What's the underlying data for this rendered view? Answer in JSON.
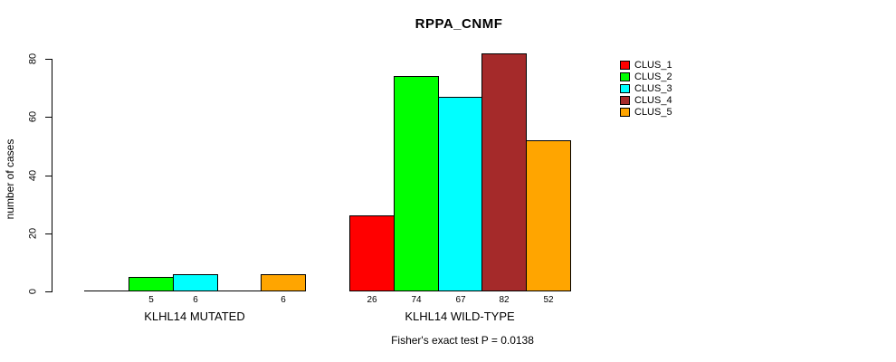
{
  "title": "RPPA_CNMF",
  "y_axis": {
    "label": "number of cases",
    "tick_labels": [
      "0",
      "20",
      "40",
      "60",
      "80"
    ]
  },
  "x_groups": [
    "KLHL14 MUTATED",
    "KLHL14 WILD-TYPE"
  ],
  "footnote": "Fisher's exact test P = 0.0138",
  "legend": {
    "items": [
      {
        "label": "CLUS_1",
        "color": "#FF0000"
      },
      {
        "label": "CLUS_2",
        "color": "#00FF00"
      },
      {
        "label": "CLUS_3",
        "color": "#00FFFF"
      },
      {
        "label": "CLUS_4",
        "color": "#A52A2A"
      },
      {
        "label": "CLUS_5",
        "color": "#FFA500"
      }
    ]
  },
  "chart_data": {
    "type": "bar",
    "title": "RPPA_CNMF",
    "xlabel": "",
    "ylabel": "number of cases",
    "ylim": [
      0,
      80
    ],
    "yticks": [
      0,
      20,
      40,
      60,
      80
    ],
    "grid": false,
    "legend_position": "right",
    "categories": [
      "KLHL14 MUTATED",
      "KLHL14 WILD-TYPE"
    ],
    "series": [
      {
        "name": "CLUS_1",
        "color": "#FF0000",
        "values": [
          0,
          26
        ]
      },
      {
        "name": "CLUS_2",
        "color": "#00FF00",
        "values": [
          5,
          74
        ]
      },
      {
        "name": "CLUS_3",
        "color": "#00FFFF",
        "values": [
          6,
          67
        ]
      },
      {
        "name": "CLUS_4",
        "color": "#A52A2A",
        "values": [
          0,
          82
        ]
      },
      {
        "name": "CLUS_5",
        "color": "#FFA500",
        "values": [
          6,
          52
        ]
      }
    ],
    "bar_value_labels": [
      [
        "",
        "5",
        "6",
        "",
        "6"
      ],
      [
        "26",
        "74",
        "67",
        "82",
        "52"
      ]
    ],
    "annotation": "Fisher's exact test P = 0.0138"
  }
}
